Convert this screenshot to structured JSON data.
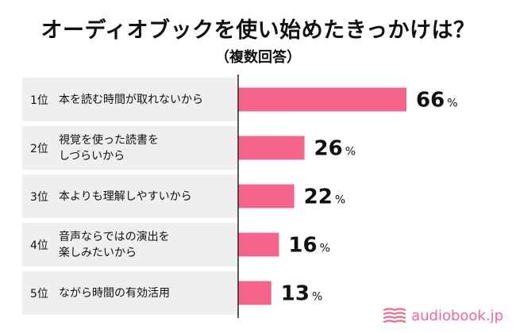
{
  "title": "オーディオブックを使い始めたきっかけは？",
  "subtitle": "（複数回答）",
  "brand": {
    "name": "audiobook.jp",
    "icon": "open-book-icon",
    "color": "#f06b8c"
  },
  "bar_color": "#f5658b",
  "row_bg_color": "#efefef",
  "chart_data": {
    "type": "bar",
    "orientation": "horizontal",
    "categories": [
      {
        "rank": "1位",
        "label": "本を読む時間が取れないから"
      },
      {
        "rank": "2位",
        "label": "視覚を使った読書を\nしづらいから"
      },
      {
        "rank": "3位",
        "label": "本よりも理解しやすいから"
      },
      {
        "rank": "4位",
        "label": "音声ならではの演出を\n楽しみたいから"
      },
      {
        "rank": "5位",
        "label": "ながら時間の有効活用"
      }
    ],
    "values": [
      66,
      26,
      22,
      16,
      13
    ],
    "value_suffix": "%",
    "grid": false
  }
}
